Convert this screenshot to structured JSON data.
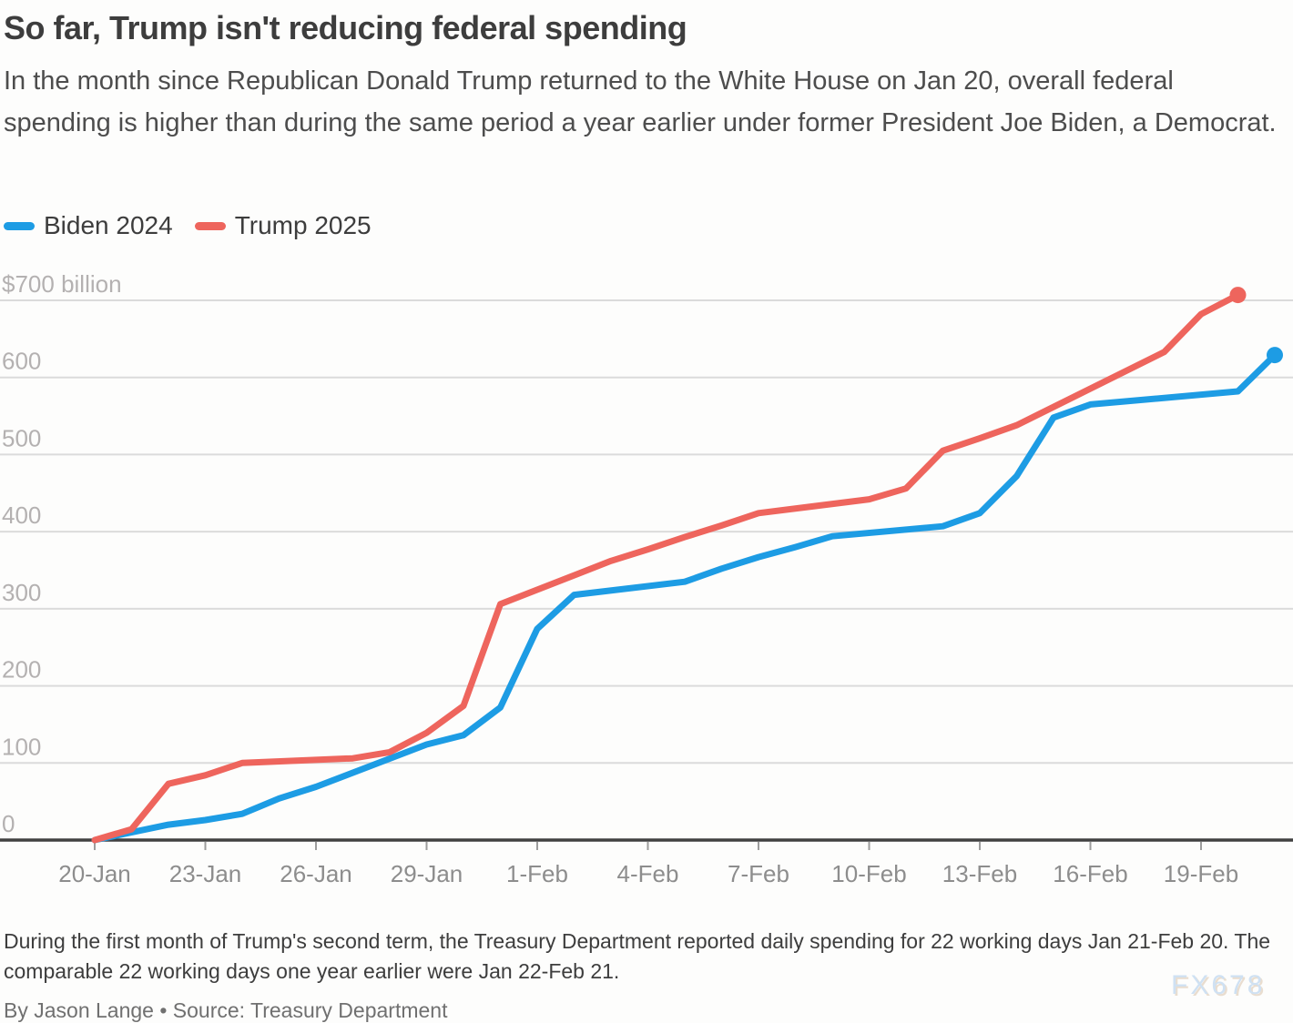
{
  "header": {
    "title": "So far, Trump isn't reducing federal spending",
    "subtitle": "In the month since Republican Donald Trump returned to the White House on Jan 20, overall federal spending is higher than during the same period a year earlier under former President Joe Biden, a Democrat."
  },
  "legend": {
    "items": [
      {
        "label": "Biden 2024",
        "color": "#1d9ce4"
      },
      {
        "label": "Trump 2025",
        "color": "#ee655d"
      }
    ]
  },
  "chart_data": {
    "type": "line",
    "title": "So far, Trump isn't reducing federal spending",
    "grid": "horizontal",
    "legend_position": "top-left",
    "y_axis": {
      "min": 0,
      "max": 700,
      "tick_step": 100,
      "top_tick_label": "$700 billion",
      "tick_labels": [
        "0",
        "100",
        "200",
        "300",
        "400",
        "500",
        "600",
        "$700 billion"
      ],
      "units": "billions of dollars, cumulative"
    },
    "x_axis": {
      "units": "days since 20-Jan",
      "ticks": [
        {
          "day": 0,
          "label": "20-Jan"
        },
        {
          "day": 3,
          "label": "23-Jan"
        },
        {
          "day": 6,
          "label": "26-Jan"
        },
        {
          "day": 9,
          "label": "29-Jan"
        },
        {
          "day": 12,
          "label": "1-Feb"
        },
        {
          "day": 15,
          "label": "4-Feb"
        },
        {
          "day": 18,
          "label": "7-Feb"
        },
        {
          "day": 21,
          "label": "10-Feb"
        },
        {
          "day": 24,
          "label": "13-Feb"
        },
        {
          "day": 27,
          "label": "16-Feb"
        },
        {
          "day": 30,
          "label": "19-Feb"
        }
      ]
    },
    "series": [
      {
        "name": "Biden 2024",
        "color": "#1d9ce4",
        "end_dot": true,
        "points": [
          [
            0,
            0
          ],
          [
            2,
            20
          ],
          [
            3,
            26
          ],
          [
            4,
            34
          ],
          [
            5,
            54
          ],
          [
            6,
            69
          ],
          [
            9,
            124
          ],
          [
            10,
            136
          ],
          [
            11,
            172
          ],
          [
            12,
            274
          ],
          [
            13,
            318
          ],
          [
            16,
            335
          ],
          [
            17,
            352
          ],
          [
            18,
            367
          ],
          [
            19,
            380
          ],
          [
            20,
            394
          ],
          [
            23,
            407
          ],
          [
            24,
            424
          ],
          [
            25,
            472
          ],
          [
            26,
            548
          ],
          [
            27,
            565
          ],
          [
            31,
            582
          ],
          [
            32,
            629
          ]
        ]
      },
      {
        "name": "Trump 2025",
        "color": "#ee655d",
        "end_dot": true,
        "points": [
          [
            0,
            0
          ],
          [
            1,
            14
          ],
          [
            2,
            73
          ],
          [
            3,
            84
          ],
          [
            4,
            100
          ],
          [
            7,
            106
          ],
          [
            8,
            114
          ],
          [
            9,
            139
          ],
          [
            10,
            174
          ],
          [
            11,
            306
          ],
          [
            14,
            362
          ],
          [
            15,
            377
          ],
          [
            16,
            393
          ],
          [
            17,
            408
          ],
          [
            18,
            424
          ],
          [
            21,
            442
          ],
          [
            22,
            456
          ],
          [
            23,
            505
          ],
          [
            24,
            521
          ],
          [
            25,
            538
          ],
          [
            29,
            633
          ],
          [
            30,
            682
          ],
          [
            31,
            707
          ]
        ]
      }
    ]
  },
  "footer": {
    "note": "During the first month of Trump's second term, the Treasury Department reported daily spending for 22 working days Jan 21-Feb 20. The comparable 22 working days one year earlier were Jan 22-Feb 21.",
    "byline": "By Jason Lange • Source: Treasury Department",
    "watermark": "FX678"
  }
}
